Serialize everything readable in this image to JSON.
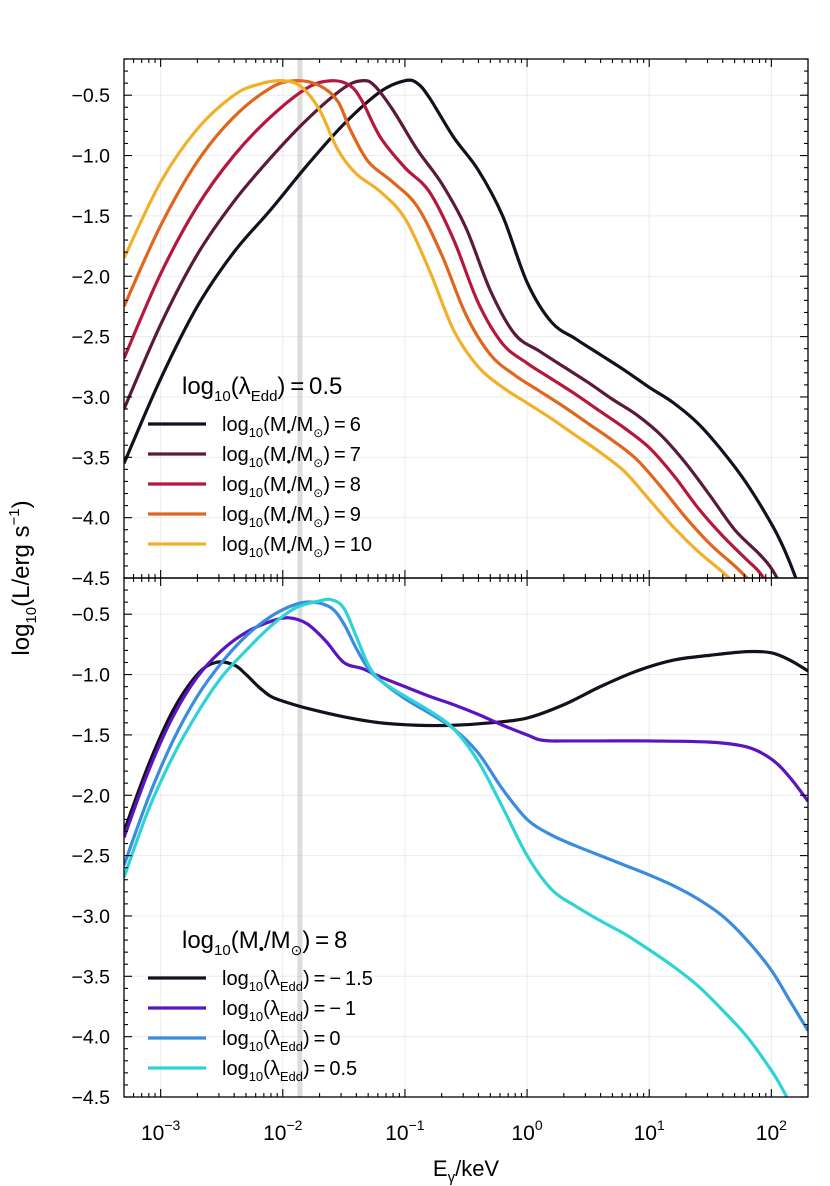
{
  "chart_data": [
    {
      "type": "line",
      "panel": "top",
      "xscale": "log",
      "xlim_exp": [
        -3.3,
        2.3
      ],
      "ylim": [
        -4.5,
        -0.2
      ],
      "yticks": [
        -4.5,
        -4.0,
        -3.5,
        -3.0,
        -2.5,
        -2.0,
        -1.5,
        -1.0,
        -0.5
      ],
      "ytick_labels": [
        "−4.5",
        "−4.0",
        "−3.5",
        "−3.0",
        "−2.5",
        "−2.0",
        "−1.5",
        "−1.0",
        "−0.5"
      ],
      "grid": true,
      "legend_position": "lower-left",
      "legend_title": {
        "prefix": "log",
        "sub": "10",
        "body": "(λ",
        "sub2": "Edd",
        "suffix": ") = 0.5"
      },
      "series": [
        {
          "name": "log10(M•/M⊙) = 6",
          "value": "6",
          "color": "#14101e",
          "x_log": [
            -3.3,
            -3.0,
            -2.7,
            -2.4,
            -2.1,
            -1.8,
            -1.5,
            -1.2,
            -1.0,
            -0.9,
            -0.8,
            -0.6,
            -0.4,
            -0.2,
            0.0,
            0.2,
            0.4,
            0.6,
            0.8,
            1.0,
            1.2,
            1.4,
            1.6,
            1.8,
            2.0,
            2.1,
            2.2,
            2.3
          ],
          "y": [
            -3.55,
            -2.85,
            -2.25,
            -1.8,
            -1.45,
            -1.08,
            -0.74,
            -0.47,
            -0.38,
            -0.4,
            -0.52,
            -0.85,
            -1.12,
            -1.5,
            -2.05,
            -2.38,
            -2.52,
            -2.65,
            -2.78,
            -2.92,
            -3.05,
            -3.22,
            -3.45,
            -3.72,
            -4.05,
            -4.25,
            -4.5,
            -4.8
          ]
        },
        {
          "name": "log10(M•/M⊙) = 7",
          "value": "7",
          "color": "#5c1a3a",
          "x_log": [
            -3.3,
            -3.0,
            -2.7,
            -2.4,
            -2.1,
            -1.8,
            -1.5,
            -1.35,
            -1.25,
            -1.1,
            -0.9,
            -0.7,
            -0.5,
            -0.3,
            -0.1,
            0.1,
            0.3,
            0.5,
            0.7,
            0.9,
            1.1,
            1.3,
            1.5,
            1.7,
            1.9,
            2.0,
            2.1,
            2.2
          ],
          "y": [
            -3.1,
            -2.4,
            -1.82,
            -1.38,
            -1.02,
            -0.7,
            -0.44,
            -0.38,
            -0.42,
            -0.62,
            -0.95,
            -1.23,
            -1.6,
            -2.12,
            -2.48,
            -2.62,
            -2.75,
            -2.88,
            -3.02,
            -3.15,
            -3.32,
            -3.55,
            -3.82,
            -4.1,
            -4.3,
            -4.42,
            -4.6,
            -4.8
          ]
        },
        {
          "name": "log10(M•/M⊙) = 8",
          "value": "8",
          "color": "#b5173d",
          "x_log": [
            -3.3,
            -3.0,
            -2.7,
            -2.4,
            -2.1,
            -1.8,
            -1.6,
            -1.45,
            -1.35,
            -1.2,
            -1.0,
            -0.8,
            -0.6,
            -0.4,
            -0.2,
            0.0,
            0.2,
            0.4,
            0.6,
            0.8,
            1.0,
            1.2,
            1.4,
            1.6,
            1.8,
            1.9,
            2.0,
            2.1
          ],
          "y": [
            -2.68,
            -1.98,
            -1.42,
            -1.0,
            -0.68,
            -0.44,
            -0.38,
            -0.42,
            -0.55,
            -0.85,
            -1.1,
            -1.3,
            -1.7,
            -2.22,
            -2.56,
            -2.72,
            -2.85,
            -2.98,
            -3.12,
            -3.26,
            -3.42,
            -3.65,
            -3.92,
            -4.15,
            -4.35,
            -4.45,
            -4.6,
            -4.8
          ]
        },
        {
          "name": "log10(M•/M⊙) = 9",
          "value": "9",
          "color": "#e0661e",
          "x_log": [
            -3.3,
            -3.0,
            -2.7,
            -2.4,
            -2.1,
            -1.9,
            -1.7,
            -1.55,
            -1.45,
            -1.3,
            -1.1,
            -0.9,
            -0.7,
            -0.5,
            -0.3,
            -0.1,
            0.1,
            0.3,
            0.5,
            0.7,
            0.9,
            1.1,
            1.3,
            1.5,
            1.7,
            1.8,
            1.9,
            2.0
          ],
          "y": [
            -2.25,
            -1.58,
            -1.05,
            -0.68,
            -0.44,
            -0.38,
            -0.42,
            -0.55,
            -0.78,
            -1.05,
            -1.22,
            -1.42,
            -1.82,
            -2.32,
            -2.65,
            -2.82,
            -2.95,
            -3.08,
            -3.22,
            -3.36,
            -3.52,
            -3.75,
            -4.0,
            -4.22,
            -4.4,
            -4.5,
            -4.62,
            -4.8
          ]
        },
        {
          "name": "log10(M•/M⊙) = 10",
          "value": "10",
          "color": "#f2b02a",
          "x_log": [
            -3.3,
            -3.0,
            -2.7,
            -2.4,
            -2.2,
            -2.0,
            -1.85,
            -1.7,
            -1.55,
            -1.4,
            -1.2,
            -1.0,
            -0.8,
            -0.6,
            -0.4,
            -0.2,
            0.0,
            0.2,
            0.4,
            0.6,
            0.8,
            1.0,
            1.2,
            1.4,
            1.6,
            1.7,
            1.8,
            1.9
          ],
          "y": [
            -1.85,
            -1.22,
            -0.78,
            -0.5,
            -0.41,
            -0.38,
            -0.43,
            -0.62,
            -0.95,
            -1.15,
            -1.3,
            -1.52,
            -1.95,
            -2.45,
            -2.75,
            -2.92,
            -3.05,
            -3.18,
            -3.32,
            -3.46,
            -3.62,
            -3.85,
            -4.08,
            -4.28,
            -4.45,
            -4.55,
            -4.68,
            -4.85
          ]
        }
      ]
    },
    {
      "type": "line",
      "panel": "bottom",
      "xscale": "log",
      "xlim_exp": [
        -3.3,
        2.3
      ],
      "ylim": [
        -4.5,
        -0.2
      ],
      "yticks": [
        -4.5,
        -4.0,
        -3.5,
        -3.0,
        -2.5,
        -2.0,
        -1.5,
        -1.0,
        -0.5
      ],
      "ytick_labels": [
        "−4.5",
        "−4.0",
        "−3.5",
        "−3.0",
        "−2.5",
        "−2.0",
        "−1.5",
        "−1.0",
        "−0.5"
      ],
      "xtick_exponents": [
        "-3",
        "-2",
        "-1",
        "0",
        "1",
        "2"
      ],
      "xtick_base": "10",
      "grid": true,
      "legend_position": "lower-left",
      "legend_title": {
        "prefix": "log",
        "sub": "10",
        "body": "(M",
        "bullet": "•",
        "mid": "/M",
        "sun": "⊙",
        "suffix": ") = 8"
      },
      "series": [
        {
          "name": "log10(λEdd) = −1.5",
          "value": "− 1.5",
          "color": "#14101e",
          "x_log": [
            -3.3,
            -3.1,
            -2.9,
            -2.7,
            -2.55,
            -2.4,
            -2.3,
            -2.2,
            -2.1,
            -2.0,
            -1.8,
            -1.5,
            -1.2,
            -0.9,
            -0.6,
            -0.3,
            0.0,
            0.3,
            0.6,
            0.9,
            1.2,
            1.5,
            1.8,
            2.0,
            2.15,
            2.3
          ],
          "y": [
            -2.3,
            -1.75,
            -1.3,
            -1.0,
            -0.9,
            -0.92,
            -1.0,
            -1.1,
            -1.18,
            -1.22,
            -1.28,
            -1.35,
            -1.4,
            -1.42,
            -1.42,
            -1.4,
            -1.36,
            -1.25,
            -1.1,
            -0.97,
            -0.88,
            -0.84,
            -0.81,
            -0.82,
            -0.88,
            -0.97
          ]
        },
        {
          "name": "log10(λEdd) = −1",
          "value": "− 1",
          "color": "#5a14c2",
          "x_log": [
            -3.3,
            -3.1,
            -2.9,
            -2.7,
            -2.5,
            -2.3,
            -2.1,
            -1.95,
            -1.8,
            -1.65,
            -1.5,
            -1.35,
            -1.2,
            -1.0,
            -0.8,
            -0.6,
            -0.4,
            -0.2,
            0.0,
            0.1,
            0.2,
            0.3,
            0.6,
            1.0,
            1.5,
            1.8,
            2.0,
            2.15,
            2.3
          ],
          "y": [
            -2.35,
            -1.8,
            -1.35,
            -1.02,
            -0.8,
            -0.65,
            -0.56,
            -0.53,
            -0.58,
            -0.72,
            -0.9,
            -0.95,
            -1.02,
            -1.1,
            -1.18,
            -1.25,
            -1.33,
            -1.42,
            -1.5,
            -1.54,
            -1.55,
            -1.55,
            -1.55,
            -1.55,
            -1.56,
            -1.6,
            -1.7,
            -1.85,
            -2.05
          ]
        },
        {
          "name": "log10(λEdd) = 0",
          "value": "0",
          "color": "#3a8cde",
          "x_log": [
            -3.3,
            -3.1,
            -2.9,
            -2.7,
            -2.5,
            -2.3,
            -2.1,
            -1.9,
            -1.75,
            -1.6,
            -1.5,
            -1.4,
            -1.3,
            -1.2,
            -1.0,
            -0.8,
            -0.6,
            -0.4,
            -0.2,
            0.0,
            0.2,
            0.4,
            0.6,
            0.8,
            1.0,
            1.2,
            1.4,
            1.6,
            1.8,
            2.0,
            2.15,
            2.3
          ],
          "y": [
            -2.58,
            -2.02,
            -1.55,
            -1.18,
            -0.9,
            -0.68,
            -0.52,
            -0.42,
            -0.4,
            -0.45,
            -0.58,
            -0.78,
            -0.95,
            -1.05,
            -1.2,
            -1.32,
            -1.45,
            -1.65,
            -1.95,
            -2.2,
            -2.33,
            -2.42,
            -2.5,
            -2.58,
            -2.66,
            -2.75,
            -2.86,
            -3.0,
            -3.2,
            -3.45,
            -3.7,
            -3.95
          ]
        },
        {
          "name": "log10(λEdd) = 0.5",
          "value": "0.5",
          "color": "#2ed3d6",
          "x_log": [
            -3.3,
            -3.1,
            -2.9,
            -2.7,
            -2.5,
            -2.3,
            -2.1,
            -1.9,
            -1.7,
            -1.6,
            -1.5,
            -1.4,
            -1.3,
            -1.2,
            -1.0,
            -0.8,
            -0.6,
            -0.4,
            -0.2,
            0.0,
            0.2,
            0.4,
            0.6,
            0.8,
            1.0,
            1.2,
            1.4,
            1.6,
            1.8,
            2.0,
            2.1,
            2.2
          ],
          "y": [
            -2.68,
            -2.12,
            -1.68,
            -1.32,
            -1.02,
            -0.8,
            -0.6,
            -0.45,
            -0.39,
            -0.38,
            -0.45,
            -0.68,
            -0.92,
            -1.05,
            -1.18,
            -1.3,
            -1.45,
            -1.72,
            -2.1,
            -2.5,
            -2.78,
            -2.92,
            -3.04,
            -3.15,
            -3.28,
            -3.42,
            -3.58,
            -3.78,
            -4.0,
            -4.28,
            -4.45,
            -4.65
          ]
        }
      ]
    }
  ],
  "axes": {
    "xlabel": {
      "main": "E",
      "sub": "γ",
      "rest": "/keV"
    },
    "ylabel": {
      "pre": "log",
      "sub": "10",
      "mid": "(L/erg s",
      "sup": "−1",
      "post": ")"
    }
  },
  "legend_entry_parts": {
    "mass": {
      "prefix": "log",
      "sub": "10",
      "body": "(M",
      "bullet": "•",
      "mid": "/M",
      "sun": "⊙",
      "eq": ") = "
    },
    "edd": {
      "prefix": "log",
      "sub": "10",
      "body": "(λ",
      "sub2": "Edd",
      "eq": ") = "
    }
  },
  "highlight_band": {
    "x_log": -1.86,
    "color": "#bbbbbb"
  }
}
